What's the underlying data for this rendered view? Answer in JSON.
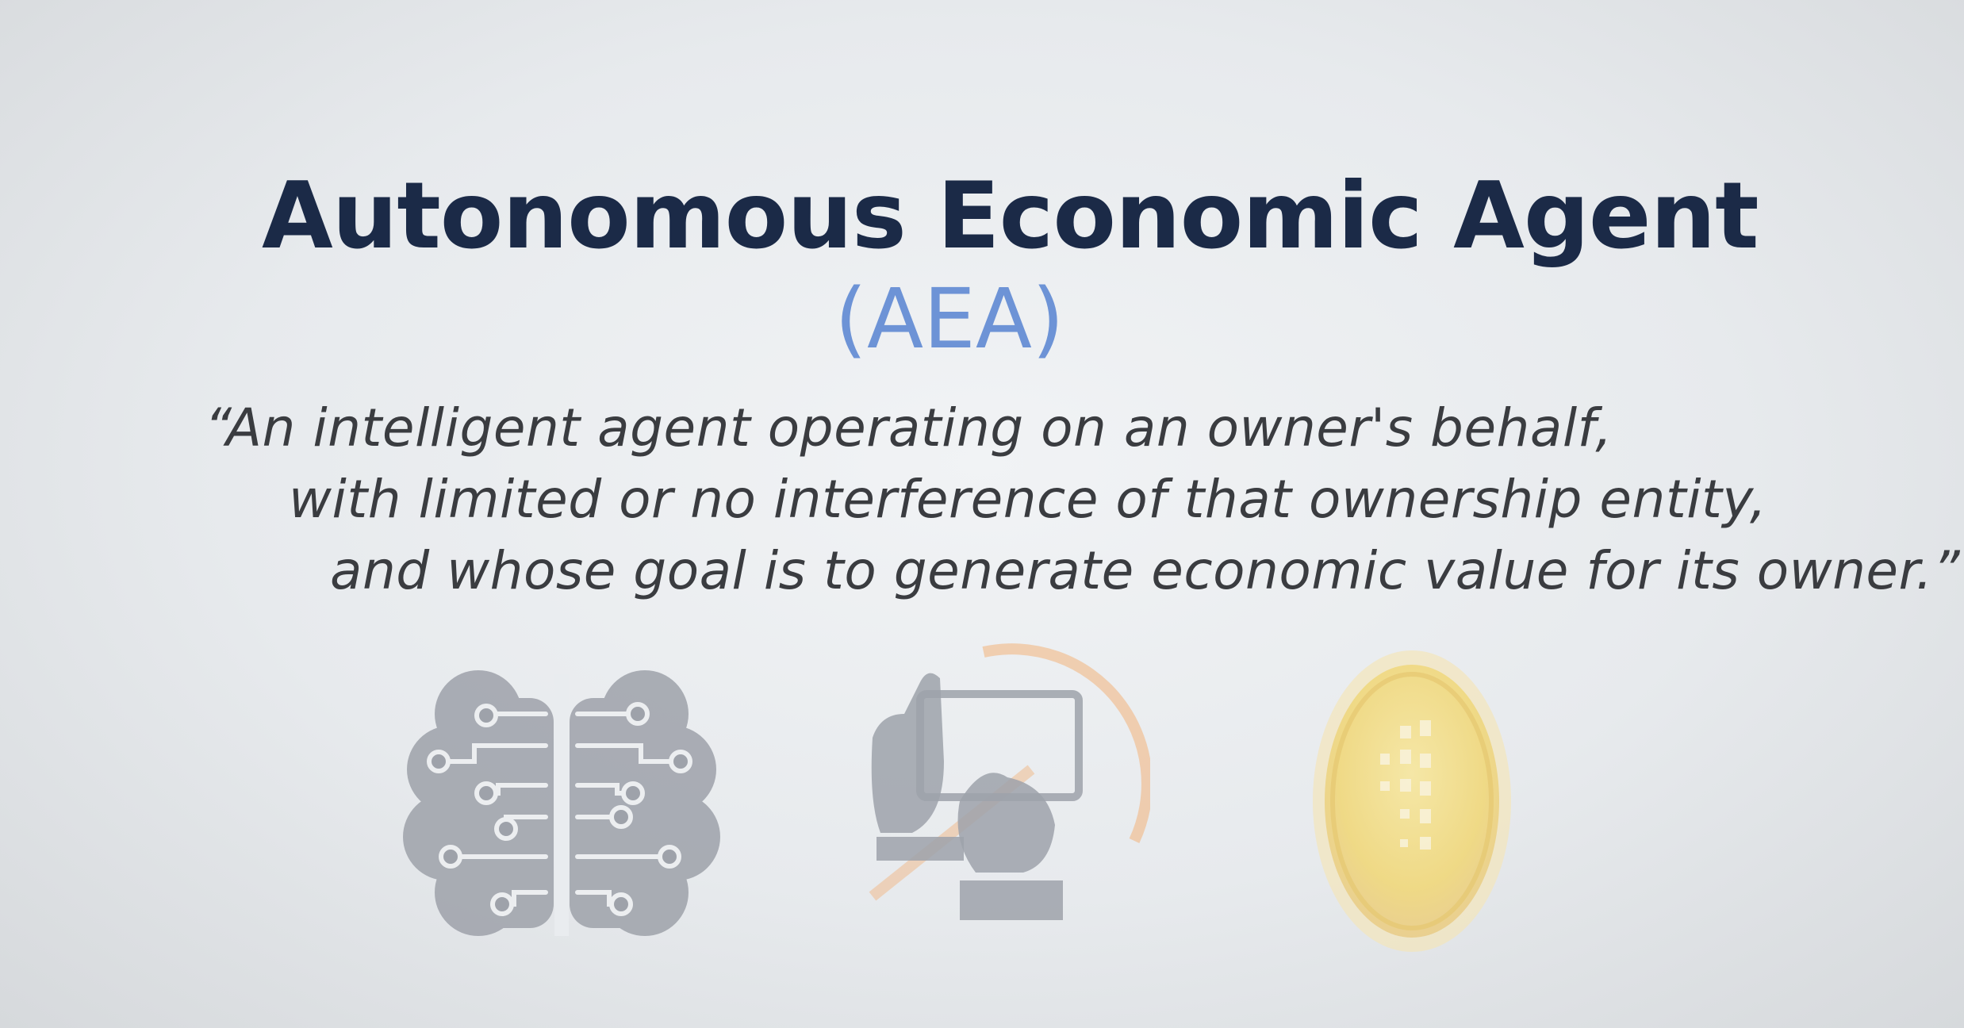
{
  "slide": {
    "title": "Autonomous Economic Agent",
    "subtitle": "(AEA)",
    "quote": [
      "“An intelligent agent operating on an owner's behalf,",
      "with limited or no interference of that ownership entity,",
      "and whose goal is to generate economic value for its owner.”"
    ]
  },
  "icons": {
    "brain": "circuit-brain-icon",
    "hands": "hand-holding-phone-icon",
    "coin": "gold-coin-icon"
  },
  "colors": {
    "title": "#1b2a47",
    "subtitle": "#6d93d6",
    "quote": "#3a3c40",
    "icon_gray": "#9ea2aa",
    "accent_orange": "#f2b27a",
    "coin_gold": "#f0d878"
  }
}
